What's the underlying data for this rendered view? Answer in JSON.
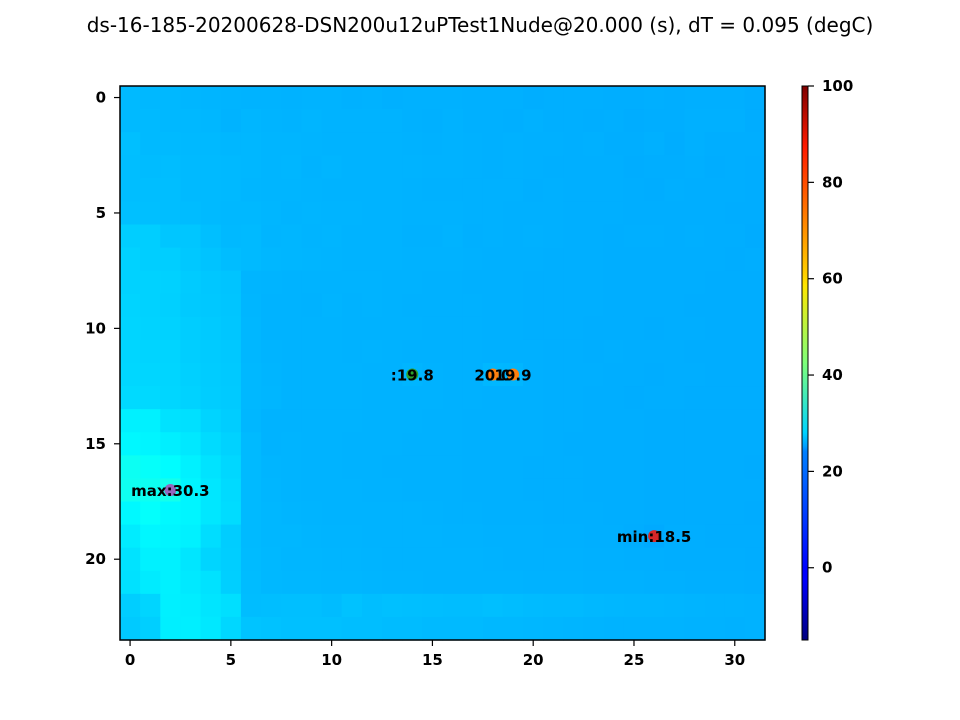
{
  "chart_data": {
    "type": "heatmap",
    "title": "ds-16-185-20200628-DSN200u12uPTest1Nude@20.000 (s), dT = 0.095 (degC)",
    "colormap": "jet",
    "color_range": [
      -15,
      100
    ],
    "grid": false,
    "n_rows": 24,
    "n_cols": 32,
    "x_ticks": [
      0,
      5,
      10,
      15,
      20,
      25,
      30
    ],
    "x_tick_labels": [
      "0",
      "5",
      "10",
      "15",
      "20",
      "25",
      "30"
    ],
    "y_ticks": [
      0,
      5,
      10,
      15,
      20
    ],
    "y_tick_labels": [
      "0",
      "5",
      "10",
      "15",
      "20"
    ],
    "colorbar_ticks": [
      0,
      20,
      40,
      60,
      80,
      100
    ],
    "colorbar_tick_labels": [
      "0",
      "20",
      "40",
      "60",
      "80",
      "100"
    ],
    "values": [
      [
        20.3,
        20.1,
        20.1,
        19.9,
        19.8,
        19.7,
        19.5,
        19.6,
        19.4,
        19.5,
        19.5,
        19.3,
        19.4,
        19.2,
        19.3,
        19.3,
        19.3,
        19.2,
        19.2,
        19.2,
        19.0,
        19.1,
        19.1,
        19.1,
        19.0,
        19.0,
        19.1,
        19.0,
        19.1,
        19.1,
        19.1,
        18.9
      ],
      [
        20.3,
        20.3,
        20.1,
        20.1,
        20.0,
        19.6,
        19.9,
        19.7,
        19.6,
        19.8,
        19.5,
        19.5,
        19.5,
        19.5,
        19.3,
        19.2,
        19.4,
        19.2,
        19.2,
        19.1,
        19.3,
        19.1,
        19.1,
        19.0,
        19.1,
        18.9,
        19.0,
        19.0,
        19.2,
        19.2,
        19.2,
        18.9
      ],
      [
        20.9,
        20.3,
        20.3,
        20.2,
        20.2,
        20.0,
        20.0,
        19.8,
        19.8,
        19.7,
        19.6,
        19.5,
        19.6,
        19.5,
        19.4,
        19.3,
        19.4,
        19.3,
        19.2,
        19.3,
        19.2,
        19.2,
        19.1,
        19.2,
        19.0,
        19.0,
        19.2,
        18.9,
        19.2,
        19.0,
        19.0,
        19.0
      ],
      [
        20.8,
        20.6,
        20.7,
        20.4,
        20.3,
        20.2,
        20.0,
        19.8,
        19.9,
        19.6,
        19.8,
        19.5,
        19.5,
        19.5,
        19.5,
        19.4,
        19.4,
        19.3,
        19.2,
        19.3,
        19.2,
        19.1,
        19.1,
        19.1,
        19.1,
        18.9,
        19.0,
        19.0,
        19.1,
        18.9,
        19.0,
        18.9
      ],
      [
        20.8,
        20.8,
        20.8,
        20.3,
        20.3,
        20.2,
        19.9,
        19.8,
        19.8,
        19.7,
        19.6,
        19.5,
        19.5,
        19.5,
        19.4,
        19.3,
        19.3,
        19.3,
        19.3,
        19.3,
        19.1,
        19.2,
        19.1,
        19.1,
        19.1,
        19.0,
        18.9,
        19.1,
        19.0,
        19.0,
        19.0,
        18.9
      ],
      [
        21.0,
        20.9,
        20.8,
        20.6,
        20.4,
        20.1,
        20.1,
        19.9,
        19.7,
        19.8,
        19.7,
        19.7,
        19.5,
        19.5,
        19.4,
        19.4,
        19.4,
        19.3,
        19.3,
        19.2,
        19.2,
        19.2,
        19.1,
        19.1,
        19.1,
        19.0,
        19.0,
        19.0,
        19.0,
        19.0,
        18.9,
        18.9
      ],
      [
        22.6,
        22.6,
        21.7,
        21.7,
        20.9,
        20.2,
        20.3,
        19.8,
        19.9,
        19.7,
        19.8,
        19.6,
        19.6,
        19.5,
        19.3,
        19.3,
        19.5,
        19.2,
        19.3,
        19.2,
        19.3,
        19.2,
        19.1,
        19.1,
        19.0,
        19.1,
        19.1,
        19.0,
        19.1,
        19.0,
        19.0,
        18.8
      ],
      [
        23.0,
        22.6,
        22.6,
        21.9,
        21.4,
        20.7,
        20.3,
        20.0,
        19.9,
        19.8,
        19.7,
        19.6,
        19.6,
        19.5,
        19.4,
        19.4,
        19.4,
        19.3,
        19.2,
        19.2,
        19.2,
        19.1,
        19.1,
        19.1,
        19.0,
        19.0,
        19.0,
        19.0,
        19.0,
        19.0,
        18.9,
        19.0
      ],
      [
        23.1,
        23.1,
        22.9,
        22.3,
        21.8,
        21.5,
        19.8,
        19.7,
        19.6,
        19.6,
        19.6,
        19.5,
        19.5,
        19.4,
        19.4,
        19.3,
        19.3,
        19.2,
        19.2,
        19.2,
        19.1,
        19.1,
        19.1,
        19.1,
        19.0,
        19.0,
        19.0,
        19.0,
        19.0,
        18.9,
        18.9,
        18.9
      ],
      [
        23.3,
        23.1,
        22.8,
        22.2,
        21.9,
        21.6,
        19.9,
        19.5,
        19.5,
        19.4,
        19.7,
        19.4,
        19.5,
        19.4,
        19.3,
        19.3,
        19.3,
        19.3,
        19.2,
        19.2,
        19.1,
        19.1,
        19.1,
        19.1,
        19.0,
        19.0,
        19.0,
        19.0,
        18.9,
        18.9,
        18.9,
        18.9
      ],
      [
        23.4,
        23.2,
        23.1,
        22.5,
        22.1,
        21.7,
        20.0,
        19.6,
        19.5,
        19.6,
        19.5,
        19.4,
        19.4,
        19.4,
        19.4,
        19.3,
        19.3,
        19.3,
        19.2,
        19.2,
        19.1,
        19.1,
        19.1,
        19.0,
        19.0,
        19.0,
        18.9,
        19.0,
        19.0,
        18.9,
        18.9,
        18.9
      ],
      [
        23.5,
        23.3,
        23.3,
        22.6,
        22.3,
        21.9,
        20.0,
        19.7,
        19.6,
        19.5,
        19.6,
        19.4,
        19.5,
        19.4,
        19.3,
        19.3,
        19.3,
        19.3,
        19.2,
        19.2,
        19.2,
        19.1,
        19.1,
        19.0,
        19.1,
        19.0,
        19.0,
        19.0,
        18.9,
        18.9,
        18.9,
        18.9
      ],
      [
        23.6,
        23.5,
        23.4,
        22.8,
        22.4,
        22.0,
        20.1,
        19.8,
        19.6,
        19.6,
        19.6,
        19.5,
        19.4,
        19.4,
        19.8,
        19.4,
        19.3,
        19.3,
        20.0,
        19.9,
        19.2,
        19.1,
        19.1,
        19.1,
        19.0,
        19.0,
        18.9,
        19.0,
        19.0,
        18.9,
        18.9,
        18.9
      ],
      [
        24.0,
        23.8,
        23.5,
        23.0,
        22.5,
        22.2,
        20.1,
        19.9,
        19.6,
        19.6,
        19.6,
        19.5,
        19.4,
        19.4,
        19.4,
        19.4,
        19.3,
        19.3,
        19.2,
        19.2,
        19.2,
        19.1,
        19.1,
        19.0,
        19.0,
        18.9,
        19.0,
        19.0,
        18.9,
        18.9,
        18.9,
        18.9
      ],
      [
        26.5,
        26.6,
        24.8,
        24.6,
        23.3,
        22.5,
        20.0,
        19.6,
        19.6,
        19.6,
        19.5,
        19.5,
        19.4,
        19.4,
        19.4,
        19.3,
        19.3,
        19.2,
        19.2,
        19.2,
        19.2,
        19.1,
        19.1,
        19.0,
        19.0,
        19.0,
        18.9,
        18.9,
        18.9,
        18.9,
        18.9,
        18.9
      ],
      [
        27.3,
        27.0,
        26.3,
        25.5,
        24.1,
        23.0,
        20.4,
        19.5,
        19.7,
        19.5,
        19.5,
        19.4,
        19.4,
        19.4,
        19.3,
        19.3,
        19.3,
        19.2,
        19.2,
        19.2,
        19.2,
        19.1,
        19.0,
        19.0,
        19.0,
        19.0,
        18.9,
        18.9,
        18.9,
        18.9,
        18.9,
        18.9
      ],
      [
        29.5,
        28.7,
        27.9,
        26.6,
        25.0,
        23.6,
        20.3,
        19.8,
        19.7,
        19.6,
        19.5,
        19.4,
        19.4,
        19.3,
        19.3,
        19.3,
        19.3,
        19.2,
        19.2,
        19.2,
        19.1,
        19.1,
        19.1,
        19.0,
        19.0,
        19.0,
        18.9,
        18.9,
        18.9,
        18.9,
        18.9,
        18.8
      ],
      [
        29.8,
        29.6,
        30.3,
        27.0,
        25.4,
        24.0,
        20.4,
        19.9,
        19.7,
        19.6,
        19.5,
        19.5,
        19.4,
        19.4,
        19.3,
        19.3,
        19.3,
        19.2,
        19.2,
        19.2,
        19.1,
        19.1,
        19.1,
        19.0,
        19.0,
        19.0,
        18.9,
        18.9,
        18.9,
        18.9,
        18.9,
        18.9
      ],
      [
        27.5,
        28.5,
        27.5,
        27.0,
        25.4,
        24.2,
        20.4,
        20.0,
        19.8,
        19.7,
        19.6,
        19.6,
        19.6,
        19.5,
        19.5,
        19.4,
        19.3,
        19.3,
        19.2,
        19.2,
        19.2,
        19.1,
        19.1,
        19.1,
        19.0,
        19.0,
        18.9,
        18.9,
        18.9,
        18.9,
        18.9,
        18.8
      ],
      [
        26.0,
        27.2,
        27.0,
        26.5,
        24.3,
        22.5,
        20.3,
        20.0,
        20.0,
        19.8,
        19.7,
        19.7,
        19.6,
        19.5,
        19.5,
        19.5,
        19.4,
        19.4,
        19.3,
        19.3,
        19.3,
        19.2,
        19.2,
        19.1,
        19.1,
        18.9,
        18.5,
        19.0,
        19.0,
        18.9,
        18.9,
        18.9
      ],
      [
        25.0,
        26.5,
        26.6,
        25.3,
        23.4,
        22.6,
        20.5,
        20.1,
        19.9,
        19.9,
        19.8,
        19.8,
        19.7,
        19.6,
        19.6,
        19.5,
        19.5,
        19.5,
        19.4,
        19.3,
        19.3,
        19.3,
        19.3,
        19.2,
        19.2,
        19.1,
        19.1,
        19.0,
        19.0,
        19.0,
        19.0,
        18.9
      ],
      [
        24.7,
        25.9,
        26.5,
        25.7,
        24.8,
        22.7,
        20.6,
        20.1,
        20.0,
        20.0,
        19.9,
        19.9,
        19.8,
        19.7,
        19.7,
        19.6,
        19.6,
        19.5,
        19.5,
        19.5,
        19.4,
        19.4,
        19.4,
        19.3,
        19.3,
        19.3,
        19.2,
        19.2,
        19.1,
        19.1,
        19.1,
        19.0
      ],
      [
        22.6,
        23.4,
        26.4,
        26.1,
        25.2,
        24.5,
        20.7,
        20.8,
        20.9,
        20.9,
        20.6,
        21.2,
        20.8,
        21.0,
        20.9,
        20.8,
        20.7,
        20.7,
        20.9,
        20.7,
        20.5,
        20.4,
        20.3,
        20.1,
        20.0,
        19.9,
        19.9,
        19.8,
        19.7,
        19.5,
        19.5,
        19.4
      ],
      [
        22.2,
        22.7,
        26.3,
        26.3,
        25.5,
        23.6,
        21.5,
        21.2,
        21.0,
        21.0,
        21.0,
        20.8,
        20.8,
        20.6,
        20.6,
        20.4,
        20.4,
        20.3,
        20.1,
        20.1,
        20.0,
        19.9,
        19.8,
        19.7,
        19.6,
        19.6,
        19.5,
        19.5,
        19.4,
        19.4,
        19.3,
        19.4
      ]
    ],
    "markers": [
      {
        "name": "max",
        "col": 2,
        "row": 17,
        "label": "max:30.3",
        "color": "#9467bd"
      },
      {
        "name": "min",
        "col": 26,
        "row": 19,
        "label": "min:18.5",
        "color": "#d62728"
      },
      {
        "name": "point-a",
        "col": 14,
        "row": 12,
        "label": ":19.8",
        "color": "#2ca02c"
      },
      {
        "name": "point-b",
        "col": 18,
        "row": 12,
        "label": "20.0",
        "color": "#ff7f0e"
      },
      {
        "name": "point-c",
        "col": 19,
        "row": 12,
        "label": "19.9",
        "color": "#ff7f0e"
      }
    ]
  }
}
